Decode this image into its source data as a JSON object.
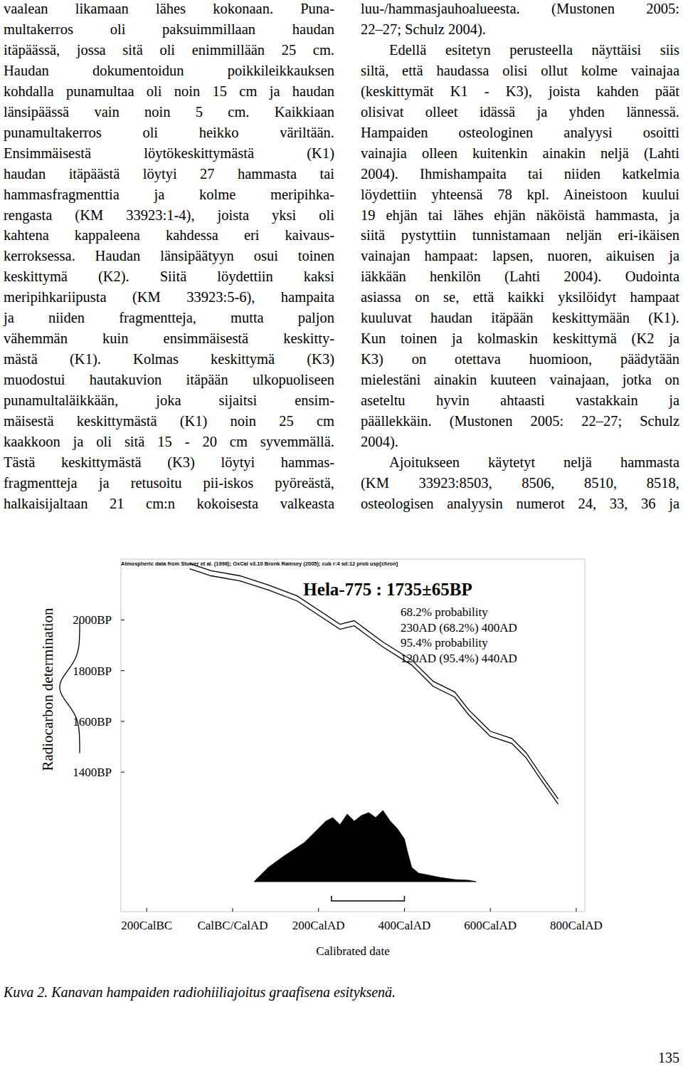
{
  "text_columns": [
    {
      "paragraphs": [
        {
          "lines": [
            "vaalean likamaan lähes kokonaan. Puna-",
            "multakerros oli paksuimmillaan haudan",
            "itäpäässä, jossa sitä oli enimmillään 25 cm.",
            "Haudan dokumentoidun poikkileikkauksen",
            "kohdalla punamultaa oli noin 15 cm ja haudan",
            "länsipäässä vain noin 5 cm. Kaikkiaan",
            "punamultakerros oli heikko väriltään.",
            "Ensimmäisestä löytökeskittymästä (K1)",
            "haudan itäpäästä löytyi 27 hammasta tai",
            "hammasfragmenttia ja kolme meripihka-",
            "rengasta (KM 33923:1-4), joista yksi oli",
            "kahtena kappaleena kahdessa eri kaivaus-",
            "kerroksessa. Haudan länsipäätyyn osui toinen",
            "keskittymä (K2). Siitä löydettiin kaksi",
            "meripihkariipusta (KM 33923:5-6), hampaita",
            "ja niiden fragmentteja, mutta paljon",
            "vähemmän kuin ensimmäisestä keskitty-",
            "mästä (K1). Kolmas keskittymä (K3)",
            "muodostui hautakuvion itäpään ulkopuoliseen",
            "punamultaläikkään, joka sijaitsi ensim-",
            "mäisestä keskittymästä (K1) noin 25 cm",
            "kaakkoon ja oli sitä 15 - 20 cm syvemmällä.",
            "Tästä keskittymästä (K3) löytyi hammas-",
            "fragmentteja ja retusoitu pii-iskos pyöreästä,",
            "halkaisijaltaan 21 cm:n kokoisesta valkeasta"
          ]
        }
      ]
    },
    {
      "paragraphs": [
        {
          "lines": [
            "luu-/hammasjauhoalueesta. (Mustonen 2005:",
            "22–27; Schulz 2004)."
          ]
        },
        {
          "lines": [
            "Edellä esitetyn perusteella näyttäisi siis",
            "siltä, että haudassa olisi ollut kolme vainajaa",
            "(keskittymät K1 - K3), joista kahden päät",
            "olisivat olleet idässä ja yhden lännessä.",
            "Hampaiden osteologinen analyysi osoitti",
            "vainajia olleen kuitenkin ainakin neljä (Lahti",
            "2004). Ihmishampaita tai niiden katkelmia",
            "löydettiin yhteensä 78 kpl. Aineistoon kuului",
            "19 ehjän tai lähes ehjän näköistä hammasta, ja",
            "siitä pystyttiin tunnistamaan neljän eri-ikäisen",
            "vainajan hampaat: lapsen, nuoren, aikuisen ja",
            "iäkkään henkilön (Lahti 2004). Oudointa",
            "asiassa on se, että kaikki yksilöidyt hampaat",
            "kuuluvat haudan itäpään keskittymään (K1).",
            "Kun toinen ja kolmaskin keskittymä (K2 ja",
            "K3) on otettava huomioon, päädytään",
            "mielestäni ainakin kuuteen vainajaan, jotka on",
            "aseteltu hyvin ahtaasti vastakkain ja",
            "päällekkäin. (Mustonen 2005: 22–27; Schulz",
            "2004)."
          ]
        },
        {
          "lines": [
            "Ajoitukseen käytetyt neljä hammasta",
            "(KM 33923:8503, 8506, 8510, 8518,",
            "osteologisen analyysin numerot 24, 33, 36 ja"
          ]
        }
      ]
    }
  ],
  "chart_data": {
    "type": "calibration",
    "subtitle": "Atmospheric data from Stuiver et al. (1998); OxCal v3.10 Bronk Ramsey (2005); cub r:4 sd:12 prob usp[chron]",
    "title": "Hela-775 : 1735±65BP",
    "annotations": [
      "68.2% probability",
      "230AD (68.2%) 400AD",
      "95.4% probability",
      "120AD (95.4%) 440AD"
    ],
    "x_label": "Calibrated date",
    "y_label": "Radiocarbon determination",
    "xlim": [
      -260,
      820
    ],
    "xticks": [
      {
        "value": -200,
        "label": "200CalBC"
      },
      {
        "value": 0,
        "label": "CalBC/CalAD"
      },
      {
        "value": 200,
        "label": "200CalAD"
      },
      {
        "value": 400,
        "label": "400CalAD"
      },
      {
        "value": 600,
        "label": "600CalAD"
      },
      {
        "value": 800,
        "label": "800CalAD"
      }
    ],
    "ylim": [
      850,
      2240
    ],
    "yticks": [
      {
        "value": 2000,
        "label": "2000BP"
      },
      {
        "value": 1800,
        "label": "1800BP"
      },
      {
        "value": 1600,
        "label": "1600BP"
      },
      {
        "value": 1400,
        "label": "1400BP"
      }
    ],
    "measurement": {
      "bp": 1735,
      "error": 65
    },
    "curve": {
      "x": [
        -100,
        -50,
        17,
        83,
        150,
        200,
        250,
        283,
        350,
        417,
        467,
        517,
        550,
        600,
        650,
        683,
        717,
        758
      ],
      "bp": [
        2212,
        2184,
        2164,
        2128,
        2085,
        2029,
        1973,
        1987,
        1903,
        1832,
        1748,
        1706,
        1635,
        1551,
        1523,
        1467,
        1382,
        1284
      ],
      "error": 10
    },
    "distribution": {
      "x": [
        50,
        58,
        83,
        117,
        142,
        167,
        192,
        217,
        233,
        250,
        267,
        283,
        300,
        317,
        333,
        350,
        367,
        383,
        400,
        408,
        417,
        433,
        450,
        483,
        517,
        550,
        567
      ],
      "values": [
        0,
        0.05,
        0.2,
        0.35,
        0.45,
        0.55,
        0.7,
        0.85,
        0.9,
        0.8,
        0.95,
        0.85,
        0.93,
        0.97,
        0.9,
        1.0,
        0.85,
        0.75,
        0.6,
        0.4,
        0.2,
        0.12,
        0.1,
        0.06,
        0.03,
        0.02,
        0
      ]
    },
    "ranges": [
      [
        230,
        400
      ]
    ]
  },
  "caption": "Kuva 2. Kanavan hampaiden radiohiiliajoitus graafisena esityksenä.",
  "page_number": "135"
}
